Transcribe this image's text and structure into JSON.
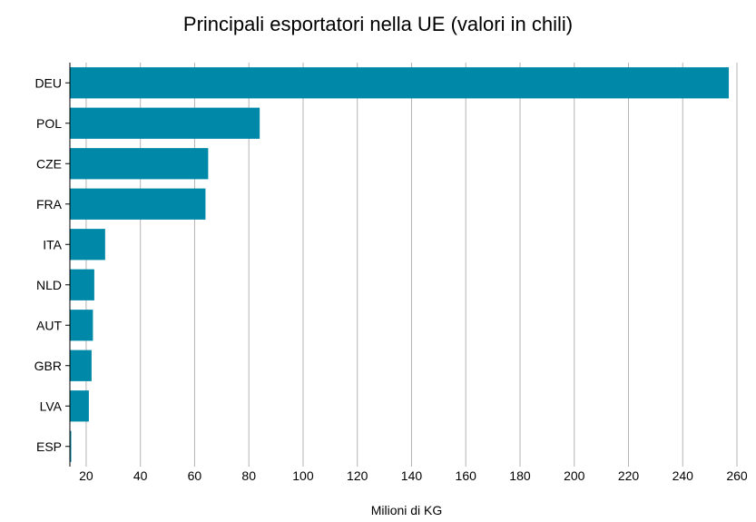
{
  "chart_data": {
    "type": "bar",
    "orientation": "horizontal",
    "title": "Principali esportatori nella UE (valori in chili)",
    "xlabel": "Milioni di KG",
    "ylabel": "",
    "categories": [
      "DEU",
      "POL",
      "CZE",
      "FRA",
      "ITA",
      "NLD",
      "AUT",
      "GBR",
      "LVA",
      "ESP"
    ],
    "values": [
      257,
      84,
      65,
      64,
      27,
      23,
      22.5,
      22,
      21,
      14.5
    ],
    "xlim": [
      14,
      262
    ],
    "xticks": [
      20,
      40,
      60,
      80,
      100,
      120,
      140,
      160,
      180,
      200,
      220,
      240,
      260
    ],
    "grid": "vertical",
    "legend": "none",
    "bar_color": "#0088a8"
  }
}
